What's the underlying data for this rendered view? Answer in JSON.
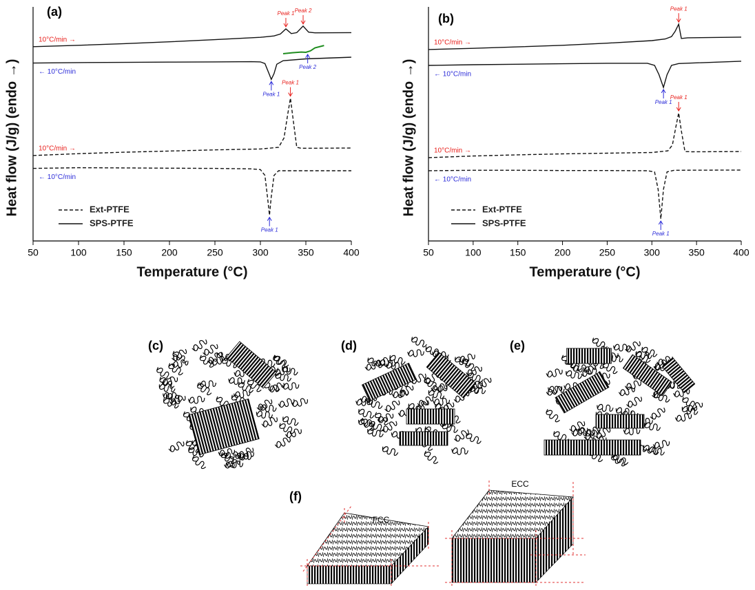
{
  "chart_data": [
    {
      "type": "line",
      "panel_label": "(a)",
      "x_label": "Temperature (°C)",
      "y_label": "Heat flow (J/g) (endo →)",
      "xlim": [
        50,
        400
      ],
      "xticks": [
        50,
        100,
        150,
        200,
        250,
        300,
        350,
        400
      ],
      "ylim": [
        0,
        100
      ],
      "legend": [
        {
          "name": "Ext-PTFE",
          "dash": "dashed"
        },
        {
          "name": "SPS-PTFE",
          "dash": "solid"
        }
      ],
      "series": [
        {
          "label": "10°C/min →",
          "label_color": "#e8201c",
          "label_position": "above",
          "color": "#111111",
          "dash": "solid",
          "x": [
            50,
            100,
            150,
            200,
            250,
            300,
            315,
            322,
            328,
            334,
            340,
            347,
            353,
            360,
            400
          ],
          "values": [
            83,
            83.6,
            84.3,
            85.1,
            86,
            87,
            87.6,
            88.4,
            90.6,
            88.6,
            89,
            91.8,
            89.2,
            88.9,
            89
          ]
        },
        {
          "label": "← 10°C/min",
          "label_color": "#2a2ad8",
          "label_position": "below",
          "color": "#111111",
          "dash": "solid",
          "x": [
            50,
            100,
            150,
            200,
            250,
            290,
            300,
            305,
            310,
            312,
            315,
            318,
            325,
            350,
            400
          ],
          "values": [
            76,
            76.2,
            76.3,
            76.4,
            76.5,
            76.6,
            76.5,
            75.8,
            71,
            69,
            71.5,
            75.5,
            77,
            77.8,
            78.5
          ]
        },
        {
          "color": "#1e8c1e",
          "dash": "solid",
          "x": [
            325,
            335,
            345,
            350,
            355,
            360,
            370
          ],
          "values": [
            80,
            80.4,
            80.7,
            80.6,
            81.2,
            82.5,
            83.5
          ]
        },
        {
          "label": "10°C/min →",
          "label_color": "#e8201c",
          "label_position": "above",
          "color": "#111111",
          "dash": "dashed",
          "x": [
            50,
            100,
            150,
            200,
            250,
            300,
            320,
            326,
            330,
            333,
            336,
            340,
            345,
            400
          ],
          "values": [
            36.5,
            37.3,
            37.9,
            38.4,
            38.9,
            39.3,
            40,
            44,
            54,
            61,
            52,
            40,
            39.6,
            39.7
          ]
        },
        {
          "label": "← 10°C/min",
          "label_color": "#2a2ad8",
          "label_position": "below",
          "color": "#111111",
          "dash": "dashed",
          "x": [
            50,
            100,
            150,
            200,
            250,
            290,
            300,
            305,
            308,
            310,
            312,
            315,
            320,
            400
          ],
          "values": [
            31,
            31.3,
            31.2,
            31.1,
            31,
            30.8,
            30.5,
            28,
            18,
            11,
            19,
            28,
            30,
            30
          ]
        }
      ],
      "annotations": [
        {
          "text": "Peak 1",
          "x": 328,
          "y": 90.6,
          "color": "#e8201c",
          "arrow": "down"
        },
        {
          "text": "Peak 2",
          "x": 347,
          "y": 91.8,
          "color": "#e8201c",
          "arrow": "down"
        },
        {
          "text": "Peak 1",
          "x": 312,
          "y": 69,
          "color": "#2a2ad8",
          "arrow": "up"
        },
        {
          "text": "Peak 2",
          "x": 352,
          "y": 80.6,
          "color": "#2a2ad8",
          "arrow": "up"
        },
        {
          "text": "Peak 1",
          "x": 333,
          "y": 61,
          "color": "#e8201c",
          "arrow": "down"
        },
        {
          "text": "Peak 1",
          "x": 310,
          "y": 11,
          "color": "#2a2ad8",
          "arrow": "up"
        }
      ]
    },
    {
      "type": "line",
      "panel_label": "(b)",
      "x_label": "Temperature (°C)",
      "y_label": "Heat flow (J/g) (endo →)",
      "xlim": [
        50,
        400
      ],
      "xticks": [
        50,
        100,
        150,
        200,
        250,
        300,
        350,
        400
      ],
      "ylim": [
        0,
        100
      ],
      "legend": [
        {
          "name": "Ext-PTFE",
          "dash": "dashed"
        },
        {
          "name": "SPS-PTFE",
          "dash": "solid"
        }
      ],
      "series": [
        {
          "label": "10°C/min →",
          "label_color": "#e8201c",
          "label_position": "above",
          "color": "#111111",
          "dash": "solid",
          "x": [
            50,
            100,
            150,
            200,
            250,
            300,
            315,
            322,
            326,
            330,
            333,
            340,
            400
          ],
          "values": [
            81.8,
            82.3,
            82.9,
            83.6,
            84.5,
            85.6,
            86.3,
            87.3,
            89.5,
            92.6,
            86.5,
            86.8,
            87.1
          ]
        },
        {
          "label": "← 10°C/min",
          "label_color": "#2a2ad8",
          "label_position": "below",
          "color": "#111111",
          "dash": "solid",
          "x": [
            50,
            100,
            150,
            200,
            250,
            295,
            303,
            308,
            313,
            317,
            322,
            330,
            400
          ],
          "values": [
            75,
            75.3,
            75.5,
            75.7,
            75.9,
            75.9,
            75,
            71,
            65.6,
            71,
            75,
            75.8,
            76.8
          ]
        },
        {
          "label": "10°C/min →",
          "label_color": "#e8201c",
          "label_position": "above",
          "color": "#111111",
          "dash": "dashed",
          "x": [
            50,
            100,
            150,
            200,
            250,
            300,
            318,
            323,
            327,
            330,
            333,
            337,
            345,
            400
          ],
          "values": [
            35.6,
            36.3,
            36.8,
            37.2,
            37.5,
            37.8,
            38.5,
            41,
            49,
            54.7,
            47,
            38.2,
            38.1,
            38.2
          ]
        },
        {
          "label": "← 10°C/min",
          "label_color": "#2a2ad8",
          "label_position": "below",
          "color": "#111111",
          "dash": "dashed",
          "x": [
            50,
            100,
            150,
            200,
            250,
            295,
            303,
            307,
            310,
            313,
            317,
            325,
            400
          ],
          "values": [
            30,
            30.2,
            30.2,
            30.1,
            30.1,
            30,
            29.5,
            22,
            9.4,
            22,
            29.5,
            30.2,
            30.3
          ]
        }
      ],
      "annotations": [
        {
          "text": "Peak 1",
          "x": 330,
          "y": 92.6,
          "color": "#e8201c",
          "arrow": "down"
        },
        {
          "text": "Peak 1",
          "x": 313,
          "y": 65.6,
          "color": "#2a2ad8",
          "arrow": "up"
        },
        {
          "text": "Peak 1",
          "x": 330,
          "y": 54.7,
          "color": "#e8201c",
          "arrow": "down"
        },
        {
          "text": "Peak 1",
          "x": 310,
          "y": 9.4,
          "color": "#2a2ad8",
          "arrow": "up"
        }
      ]
    }
  ],
  "schematics": {
    "labels": [
      "(c)",
      "(d)",
      "(e)",
      "(f)"
    ],
    "fcc": "FCC",
    "ecc": "ECC"
  }
}
